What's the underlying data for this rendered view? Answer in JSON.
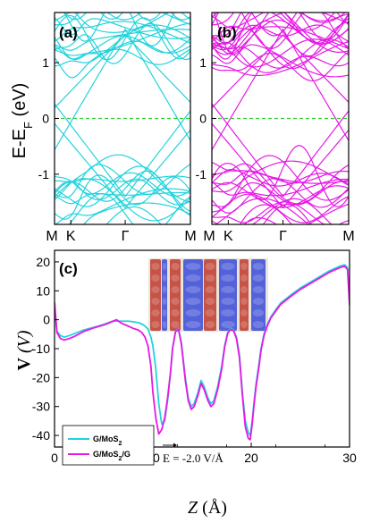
{
  "chart_data": [
    {
      "panel": "(a)",
      "type": "line",
      "ylabel_main": "E-E",
      "ylabel_sub": "F",
      "ylabel_unit": " (eV)",
      "ylim": [
        -1.9,
        1.9
      ],
      "yticks": [
        {
          "v": 1,
          "label": "1"
        },
        {
          "v": 0,
          "label": "0"
        },
        {
          "v": -1,
          "label": "-1"
        }
      ],
      "kpoints": [
        {
          "t": 0.0,
          "label": "M"
        },
        {
          "t": 0.12,
          "label": "K"
        },
        {
          "t": 0.52,
          "label": "Γ"
        },
        {
          "t": 1.0,
          "label": "M"
        }
      ],
      "fermi_level": 0,
      "color": "#22d3dc",
      "fermi_color": "#33cc33"
    },
    {
      "panel": "(b)",
      "type": "line",
      "ylim": [
        -1.9,
        1.9
      ],
      "yticks": [
        {
          "v": 1,
          "label": "1"
        },
        {
          "v": 0,
          "label": "0"
        },
        {
          "v": -1,
          "label": "-1"
        }
      ],
      "kpoints": [
        {
          "t": 0.0,
          "label": "M"
        },
        {
          "t": 0.12,
          "label": "K"
        },
        {
          "t": 0.52,
          "label": "Γ"
        },
        {
          "t": 1.0,
          "label": "M"
        }
      ],
      "fermi_level": 0,
      "color": "#e619e6",
      "fermi_color": "#33cc33"
    },
    {
      "panel": "(c)",
      "type": "line",
      "xlabel_var": "Z",
      "xlabel_unit": " (Å)",
      "ylabel_var": "V",
      "ylabel_unit": "(V)",
      "xlim": [
        0,
        30
      ],
      "ylim": [
        -44,
        24
      ],
      "xticks": [
        0,
        10,
        20,
        30
      ],
      "yticks": [
        20,
        10,
        0,
        -10,
        -20,
        -30,
        -40
      ],
      "legend_location": "bottom-left",
      "annotation": "E = -2.0 V/Å",
      "series": [
        {
          "name": "G/MoS",
          "name_sub": "2",
          "name_tail": "",
          "color": "#22d3dc",
          "x": [
            0,
            0.25,
            0.6,
            1.0,
            1.5,
            2.0,
            3.0,
            4.0,
            5.0,
            5.8,
            6.2,
            6.6,
            7.0,
            7.5,
            8.0,
            8.5,
            8.9,
            9.2,
            9.5,
            9.8,
            10.0,
            10.3,
            10.6,
            10.9,
            11.2,
            11.5,
            11.8,
            12.0,
            12.3,
            12.6,
            12.9,
            13.3,
            13.6,
            13.9,
            14.2,
            14.6,
            14.9,
            15.2,
            15.6,
            15.9,
            16.2,
            16.6,
            17.0,
            17.3,
            17.6,
            17.9,
            18.2,
            18.5,
            18.8,
            19.1,
            19.4,
            19.7,
            19.9,
            20.1,
            20.3,
            20.5,
            20.8,
            21.0,
            21.3,
            21.6,
            22.0,
            22.5,
            23.0,
            24.0,
            25.0,
            26.0,
            27.0,
            28.0,
            29.0,
            29.5,
            29.8,
            30.0
          ],
          "y": [
            4,
            -4,
            -5.5,
            -6,
            -5.5,
            -4.8,
            -3.5,
            -2.6,
            -1.6,
            -0.6,
            -0.5,
            -0.5,
            -0.5,
            -0.5,
            -0.7,
            -1,
            -1.5,
            -2.2,
            -3.2,
            -6,
            -9,
            -17,
            -29,
            -36,
            -35,
            -28,
            -18,
            -10,
            -4,
            -3,
            -8,
            -20,
            -27,
            -30,
            -29,
            -25,
            -21,
            -23,
            -27,
            -29,
            -28,
            -23,
            -16,
            -9,
            -4.5,
            -3,
            -3.5,
            -6,
            -12,
            -25,
            -35,
            -39,
            -40,
            -35,
            -28,
            -22,
            -15,
            -10,
            -5,
            -2,
            1,
            3.5,
            5.8,
            8.5,
            11,
            13,
            15,
            17,
            18.5,
            19,
            18,
            6
          ]
        },
        {
          "name": "G/MoS",
          "name_sub": "2",
          "name_tail": "/G",
          "color": "#e619e6",
          "x": [
            0,
            0.25,
            0.6,
            1.0,
            1.5,
            2.0,
            3.0,
            4.0,
            5.0,
            5.5,
            6.0,
            6.3,
            6.8,
            7.5,
            8.0,
            8.5,
            8.9,
            9.2,
            9.5,
            9.8,
            10.0,
            10.3,
            10.6,
            10.9,
            11.2,
            11.5,
            11.8,
            12.0,
            12.3,
            12.6,
            12.9,
            13.3,
            13.6,
            13.9,
            14.2,
            14.6,
            14.9,
            15.2,
            15.6,
            15.9,
            16.2,
            16.6,
            17.0,
            17.3,
            17.6,
            17.9,
            18.2,
            18.5,
            18.8,
            19.1,
            19.4,
            19.7,
            19.9,
            20.1,
            20.3,
            20.5,
            20.8,
            21.0,
            21.3,
            21.6,
            22.0,
            22.5,
            23.0,
            24.0,
            25.0,
            26.0,
            27.0,
            28.0,
            29.0,
            29.5,
            29.8,
            30.0
          ],
          "y": [
            6,
            -4.5,
            -6.5,
            -7,
            -6.5,
            -5.8,
            -4,
            -2.8,
            -1.8,
            -1.2,
            -0.4,
            0,
            -1.2,
            -2.2,
            -3,
            -3.5,
            -4.5,
            -6,
            -9,
            -16,
            -25,
            -34,
            -39.5,
            -38,
            -34,
            -27,
            -18,
            -10,
            -4.2,
            -3.3,
            -8.5,
            -21,
            -28,
            -31,
            -30,
            -26,
            -22,
            -24,
            -28,
            -30,
            -29,
            -24,
            -17,
            -9.5,
            -4.8,
            -3.3,
            -3.8,
            -6.5,
            -13,
            -26,
            -37,
            -41,
            -41.5,
            -36,
            -29,
            -23,
            -16,
            -10.5,
            -5.5,
            -2.4,
            0.6,
            3,
            5.3,
            8,
            10.5,
            12.5,
            14.5,
            16.5,
            18,
            18.5,
            17.3,
            5
          ]
        }
      ]
    }
  ]
}
